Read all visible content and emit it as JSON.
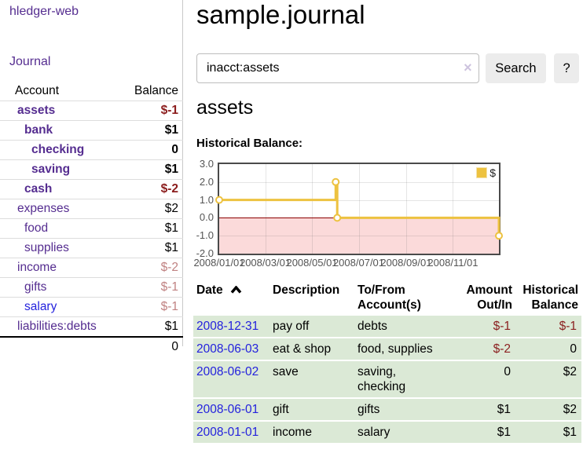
{
  "sidebar": {
    "brand": "hledger-web",
    "journal_link": "Journal",
    "accounts_table": {
      "headers": [
        "Account",
        "Balance"
      ],
      "rows": [
        {
          "account": "assets",
          "indent": 0,
          "bold": true,
          "link_color": "purple",
          "balance": "$-1",
          "balance_style": "neg-strong"
        },
        {
          "account": "bank",
          "indent": 1,
          "bold": true,
          "link_color": "purple",
          "balance": "$1",
          "balance_style": "pos"
        },
        {
          "account": "checking",
          "indent": 2,
          "bold": true,
          "link_color": "purple",
          "balance": "0",
          "balance_style": "pos"
        },
        {
          "account": "saving",
          "indent": 2,
          "bold": true,
          "link_color": "purple",
          "balance": "$1",
          "balance_style": "pos"
        },
        {
          "account": "cash",
          "indent": 1,
          "bold": true,
          "link_color": "purple",
          "balance": "$-2",
          "balance_style": "neg-strong"
        },
        {
          "account": "expenses",
          "indent": 0,
          "bold": false,
          "link_color": "purple",
          "balance": "$2",
          "balance_style": "pos"
        },
        {
          "account": "food",
          "indent": 1,
          "bold": false,
          "link_color": "purple",
          "balance": "$1",
          "balance_style": "pos"
        },
        {
          "account": "supplies",
          "indent": 1,
          "bold": false,
          "link_color": "purple",
          "balance": "$1",
          "balance_style": "pos"
        },
        {
          "account": "income",
          "indent": 0,
          "bold": false,
          "link_color": "purple",
          "balance": "$-2",
          "balance_style": "neg-soft"
        },
        {
          "account": "gifts",
          "indent": 1,
          "bold": false,
          "link_color": "purple",
          "balance": "$-1",
          "balance_style": "neg-soft"
        },
        {
          "account": "salary",
          "indent": 1,
          "bold": false,
          "link_color": "blue",
          "balance": "$-1",
          "balance_style": "neg-soft"
        },
        {
          "account": "liabilities:debts",
          "indent": 0,
          "bold": false,
          "link_color": "purple",
          "balance": "$1",
          "balance_style": "pos"
        }
      ],
      "total": "0"
    }
  },
  "header": {
    "title": "sample.journal"
  },
  "search": {
    "value": "inacct:assets",
    "clear_icon": "×",
    "button_label": "Search",
    "help_label": "?"
  },
  "account_page": {
    "heading": "assets",
    "chart_label": "Historical Balance:"
  },
  "chart_data": {
    "type": "line",
    "step": true,
    "title": "Historical Balance:",
    "series": [
      {
        "name": "$",
        "color": "#edc240",
        "points": [
          [
            "2008-01-01",
            1
          ],
          [
            "2008-06-01",
            2
          ],
          [
            "2008-06-03",
            0
          ],
          [
            "2008-12-31",
            -1
          ]
        ]
      }
    ],
    "x_range": [
      "2008-01-01",
      "2008-12-31"
    ],
    "ylim": [
      -2,
      3
    ],
    "y_ticks": [
      "3.0",
      "2.0",
      "1.0",
      "0.0",
      "-1.0",
      "-2.0"
    ],
    "x_ticks": [
      "2008/01/01",
      "2008/03/01",
      "2008/05/01",
      "2008/07/01",
      "2008/09/01",
      "2008/11/01"
    ],
    "grid": true,
    "legend_position": "top-right",
    "negative_region_color": "#fbdada",
    "zero_line_color": "#8b0000"
  },
  "register": {
    "headers": [
      {
        "lines": [
          "Date"
        ],
        "align": "left",
        "sorted_asc": true
      },
      {
        "lines": [
          "Description"
        ],
        "align": "left"
      },
      {
        "lines": [
          "To/From",
          "Account(s)"
        ],
        "align": "left"
      },
      {
        "lines": [
          "Amount",
          "Out/In"
        ],
        "align": "right"
      },
      {
        "lines": [
          "Historical",
          "Balance"
        ],
        "align": "right"
      }
    ],
    "rows": [
      {
        "date": "2008-12-31",
        "description": "pay off",
        "accounts": [
          "debts"
        ],
        "amount": "$-1",
        "amount_negative": true,
        "balance": "$-1",
        "balance_negative": true
      },
      {
        "date": "2008-06-03",
        "description": "eat & shop",
        "accounts": [
          "food, supplies"
        ],
        "amount": "$-2",
        "amount_negative": true,
        "balance": "0",
        "balance_negative": false
      },
      {
        "date": "2008-06-02",
        "description": "save",
        "accounts": [
          "saving,",
          "checking"
        ],
        "amount": "0",
        "amount_negative": false,
        "balance": "$2",
        "balance_negative": false
      },
      {
        "date": "2008-06-01",
        "description": "gift",
        "accounts": [
          "gifts"
        ],
        "amount": "$1",
        "amount_negative": false,
        "balance": "$2",
        "balance_negative": false
      },
      {
        "date": "2008-01-01",
        "description": "income",
        "accounts": [
          "salary"
        ],
        "amount": "$1",
        "amount_negative": false,
        "balance": "$1",
        "balance_negative": false
      }
    ]
  },
  "colors": {
    "link_purple": "#552d90",
    "link_blue": "#2422dd",
    "negative_strong": "#8b1c1c",
    "negative_soft": "#c08282",
    "row_green": "#dbe9d6",
    "chart_yellow": "#edc240",
    "chart_negative_bg": "#fbdada",
    "chart_zero_line": "#8b0000"
  }
}
